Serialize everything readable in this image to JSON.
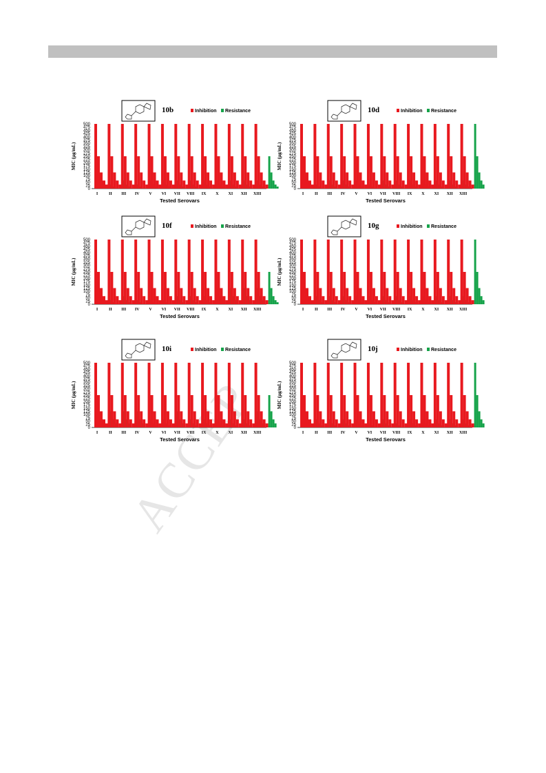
{
  "page": {
    "watermark": "ACCEP"
  },
  "colors": {
    "inhibition": "#e8191f",
    "resistance": "#16a34a",
    "header_bar": "#c0c0c0"
  },
  "chart_data": [
    {
      "type": "bar",
      "compound": "10b",
      "categories": [
        "I",
        "II",
        "III",
        "IV",
        "V",
        "VI",
        "VII",
        "VIII",
        "IX",
        "X",
        "XI",
        "XII",
        "XIII"
      ],
      "xlabel": "Tested Serovars",
      "ylabel": "MIC (µg/mL)",
      "yticks": [
        0,
        25,
        50,
        75,
        100,
        125,
        150,
        175,
        200,
        225,
        250,
        275,
        300,
        325,
        350,
        375,
        400,
        425,
        450,
        475,
        500
      ],
      "ylim": [
        0,
        500
      ],
      "legend_position": "top-right",
      "inhibition_per_category": [
        500,
        250,
        125,
        62.5,
        31.25
      ],
      "resistance_per_category": [
        [
          62.5,
          31.25,
          15.6
        ],
        [
          125,
          62.5,
          31.25,
          15.6
        ],
        [
          62.5,
          31.25,
          15.6
        ],
        [
          125,
          62.5,
          31.25,
          15.6
        ],
        [
          125,
          62.5,
          31.25,
          15.6
        ],
        [
          125,
          62.5,
          31.25,
          15.6
        ],
        [
          125,
          62.5,
          31.25,
          15.6
        ],
        [
          125,
          62.5,
          31.25,
          15.6
        ],
        [
          125,
          62.5,
          31.25,
          15.6
        ],
        [
          125,
          62.5,
          31.25,
          15.6
        ],
        [
          125,
          62.5,
          31.25,
          15.6
        ],
        [
          125,
          62.5,
          31.25,
          15.6
        ],
        [
          250,
          125,
          62.5,
          31.25,
          15.6
        ]
      ],
      "series": [
        {
          "name": "Inhibition"
        },
        {
          "name": "Resistance"
        }
      ]
    },
    {
      "type": "bar",
      "compound": "10d",
      "categories": [
        "I",
        "II",
        "III",
        "IV",
        "V",
        "VI",
        "VII",
        "VIII",
        "IX",
        "X",
        "XI",
        "XII",
        "XIII"
      ],
      "xlabel": "Tested Serovars",
      "ylabel": "MIC (µg/mL)",
      "yticks": [
        0,
        25,
        50,
        75,
        100,
        125,
        150,
        175,
        200,
        225,
        250,
        275,
        300,
        325,
        350,
        375,
        400,
        425,
        450,
        475,
        500
      ],
      "ylim": [
        0,
        500
      ],
      "legend_position": "top-right",
      "inhibition_per_category": [
        500,
        250,
        125,
        62.5,
        31.25
      ],
      "resistance_per_category": [
        [
          62.5,
          31.25,
          15.6
        ],
        [
          125,
          62.5,
          31.25,
          15.6
        ],
        [
          125,
          62.5,
          31.25,
          15.6
        ],
        [
          125,
          62.5,
          31.25,
          15.6
        ],
        [
          62.5,
          31.25,
          15.6
        ],
        [
          125,
          62.5,
          31.25,
          15.6
        ],
        [
          125,
          62.5,
          31.25,
          15.6
        ],
        [
          125,
          62.5,
          31.25,
          15.6
        ],
        [
          125,
          62.5,
          31.25,
          15.6
        ],
        [
          125,
          62.5,
          31.25,
          15.6
        ],
        [
          125,
          62.5,
          31.25,
          15.6
        ],
        [
          125,
          62.5,
          31.25,
          15.6
        ],
        [
          500,
          250,
          125,
          62.5,
          31.25
        ]
      ],
      "series": [
        {
          "name": "Inhibition"
        },
        {
          "name": "Resistance"
        }
      ]
    },
    {
      "type": "bar",
      "compound": "10f",
      "categories": [
        "I",
        "II",
        "III",
        "IV",
        "V",
        "VI",
        "VII",
        "VIII",
        "IX",
        "X",
        "XI",
        "XII",
        "XIII"
      ],
      "xlabel": "Tested Serovars",
      "ylabel": "MIC (µg/mL)",
      "yticks": [
        0,
        25,
        50,
        75,
        100,
        125,
        150,
        175,
        200,
        225,
        250,
        275,
        300,
        325,
        350,
        375,
        400,
        425,
        450,
        475,
        500
      ],
      "ylim": [
        0,
        500
      ],
      "legend_position": "top-right",
      "inhibition_per_category": [
        500,
        250,
        125,
        62.5,
        31.25
      ],
      "resistance_per_category": [
        [
          62.5,
          31.25,
          15.6
        ],
        [
          125,
          62.5,
          31.25,
          15.6
        ],
        [
          62.5,
          31.25,
          15.6
        ],
        [
          62.5,
          31.25,
          15.6
        ],
        [
          62.5,
          31.25,
          15.6
        ],
        [
          125,
          62.5,
          31.25,
          15.6
        ],
        [
          125,
          62.5,
          31.25,
          15.6
        ],
        [
          125,
          62.5,
          31.25,
          15.6
        ],
        [
          250,
          125,
          62.5,
          31.25
        ],
        [
          250,
          125,
          62.5,
          31.25
        ],
        [
          250,
          125,
          62.5,
          31.25
        ],
        [
          250,
          125,
          62.5,
          31.25
        ],
        [
          250,
          125,
          62.5,
          31.25,
          15.6
        ]
      ],
      "series": [
        {
          "name": "Inhibition"
        },
        {
          "name": "Resistance"
        }
      ]
    },
    {
      "type": "bar",
      "compound": "10g",
      "categories": [
        "I",
        "II",
        "III",
        "IV",
        "V",
        "VI",
        "VII",
        "VIII",
        "IX",
        "X",
        "XI",
        "XII",
        "XIII"
      ],
      "xlabel": "Tested Serovars",
      "ylabel": "MIC (µg/mL)",
      "yticks": [
        0,
        25,
        50,
        75,
        100,
        125,
        150,
        175,
        200,
        225,
        250,
        275,
        300,
        325,
        350,
        375,
        400,
        425,
        450,
        475,
        500
      ],
      "ylim": [
        0,
        500
      ],
      "legend_position": "top-right",
      "inhibition_per_category": [
        500,
        250,
        125,
        62.5,
        31.25
      ],
      "resistance_per_category": [
        [
          125,
          62.5,
          31.25,
          15.6
        ],
        [
          125,
          62.5,
          31.25,
          15.6
        ],
        [
          125,
          62.5,
          31.25,
          15.6
        ],
        [
          125,
          62.5,
          31.25,
          15.6
        ],
        [
          125,
          62.5,
          31.25,
          15.6
        ],
        [
          125,
          62.5,
          31.25,
          15.6
        ],
        [
          125,
          62.5,
          31.25,
          15.6
        ],
        [
          125,
          62.5,
          31.25,
          15.6
        ],
        [
          125,
          62.5,
          31.25,
          15.6
        ],
        [
          125,
          62.5,
          31.25,
          15.6
        ],
        [
          125,
          62.5,
          31.25,
          15.6
        ],
        [
          125,
          62.5,
          31.25,
          15.6
        ],
        [
          500,
          250,
          125,
          62.5,
          31.25
        ]
      ],
      "series": [
        {
          "name": "Inhibition"
        },
        {
          "name": "Resistance"
        }
      ]
    },
    {
      "type": "bar",
      "compound": "10i",
      "categories": [
        "I",
        "II",
        "III",
        "IV",
        "V",
        "VI",
        "VII",
        "VIII",
        "IX",
        "X",
        "XI",
        "XII",
        "XIII"
      ],
      "xlabel": "Tested Serovars",
      "ylabel": "MIC (µg/mL)",
      "yticks": [
        0,
        25,
        50,
        75,
        100,
        125,
        150,
        175,
        200,
        225,
        250,
        275,
        300,
        325,
        350,
        375,
        400,
        425,
        450,
        475,
        500
      ],
      "ylim": [
        0,
        500
      ],
      "legend_position": "top-right",
      "inhibition_per_category": [
        500,
        250,
        125,
        62.5,
        31.25
      ],
      "resistance_per_category": [
        [
          250,
          125,
          62.5,
          31.25
        ],
        [
          250,
          125,
          62.5,
          31.25
        ],
        [
          250,
          125,
          62.5,
          31.25
        ],
        [
          125,
          62.5,
          31.25,
          15.6
        ],
        [
          125,
          62.5,
          31.25,
          15.6
        ],
        [
          250,
          125,
          62.5,
          31.25
        ],
        [
          125,
          62.5,
          31.25,
          15.6
        ],
        [
          125,
          62.5,
          31.25,
          15.6
        ],
        [
          125,
          62.5,
          31.25,
          15.6
        ],
        [
          125,
          62.5,
          31.25,
          15.6
        ],
        [
          125,
          62.5,
          31.25,
          15.6
        ],
        [
          250,
          125,
          62.5,
          31.25
        ],
        [
          250,
          125,
          62.5,
          31.25
        ]
      ],
      "series": [
        {
          "name": "Inhibition"
        },
        {
          "name": "Resistance"
        }
      ]
    },
    {
      "type": "bar",
      "compound": "10j",
      "categories": [
        "I",
        "II",
        "III",
        "IV",
        "V",
        "VI",
        "VII",
        "VIII",
        "IX",
        "X",
        "XI",
        "XII",
        "XIII"
      ],
      "xlabel": "Tested Serovars",
      "ylabel": "MIC (µg/mL)",
      "yticks": [
        0,
        25,
        50,
        75,
        100,
        125,
        150,
        175,
        200,
        225,
        250,
        275,
        300,
        325,
        350,
        375,
        400,
        425,
        450,
        475,
        500
      ],
      "ylim": [
        0,
        500
      ],
      "legend_position": "top-right",
      "inhibition_per_category": [
        500,
        250,
        125,
        62.5,
        31.25
      ],
      "resistance_per_category": [
        [
          125,
          62.5,
          31.25,
          15.6
        ],
        [
          125,
          62.5,
          31.25,
          15.6
        ],
        [
          125,
          62.5,
          31.25,
          15.6
        ],
        [
          125,
          62.5,
          31.25,
          15.6
        ],
        [
          62.5,
          31.25,
          15.6
        ],
        [
          125,
          62.5,
          31.25,
          15.6
        ],
        [
          62.5,
          31.25,
          15.6
        ],
        [
          125,
          62.5,
          31.25,
          15.6
        ],
        [
          125,
          62.5,
          31.25,
          15.6
        ],
        [
          125,
          62.5,
          31.25,
          15.6
        ],
        [
          125,
          62.5,
          31.25,
          15.6
        ],
        [
          125,
          62.5,
          31.25,
          15.6
        ],
        [
          500,
          250,
          125,
          62.5,
          31.25
        ]
      ],
      "series": [
        {
          "name": "Inhibition"
        },
        {
          "name": "Resistance"
        }
      ]
    }
  ]
}
